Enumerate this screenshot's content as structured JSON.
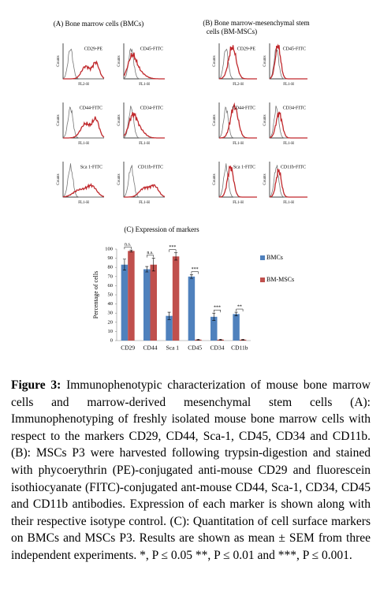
{
  "panel_a": {
    "title": "(A) Bone marrow cells (BMCs)",
    "histograms": [
      {
        "marker": "CD29-PE",
        "y_label": "Counts",
        "x_label": "FL2-H"
      },
      {
        "marker": "CD45-FITC",
        "y_label": "Counts",
        "x_label": "FL1-H"
      },
      {
        "marker": "CD44-FITC",
        "y_label": "Counts",
        "x_label": "FL1-H"
      },
      {
        "marker": "CD34-FITC",
        "y_label": "Counts",
        "x_label": "FL1-H"
      },
      {
        "marker": "Sca 1-FITC",
        "y_label": "Counts",
        "x_label": "FL1-H"
      },
      {
        "marker": "CD11b-FITC",
        "y_label": "Counts",
        "x_label": "FL1-H"
      }
    ]
  },
  "panel_b": {
    "title": [
      "(B) Bone marrow-mesenchymal stem",
      "cells (BM-MSCs)"
    ],
    "histograms": [
      {
        "marker": "CD29-PE",
        "y_label": "Counts",
        "x_label": "FL2-H"
      },
      {
        "marker": "CD45-FITC",
        "y_label": "Counts",
        "x_label": "FL1-H"
      },
      {
        "marker": "CD44-FITC",
        "y_label": "Counts",
        "x_label": "FL1-H"
      },
      {
        "marker": "CD34-FITC",
        "y_label": "Counts",
        "x_label": "FL1-H"
      },
      {
        "marker": "Sca 1-FITC",
        "y_label": "Counts",
        "x_label": "FL1-H"
      },
      {
        "marker": "CD11b-FITC",
        "y_label": "Counts",
        "x_label": "FL1-H"
      }
    ]
  },
  "chart_data": {
    "type": "bar",
    "title": "(C) Expression of markers",
    "y_label": "Percentage of cells",
    "categories": [
      "CD29",
      "CD44",
      "Sca 1",
      "CD45",
      "CD34",
      "CD11b"
    ],
    "series": [
      {
        "name": "BMCs",
        "color": "#4f81bd",
        "values": [
          83,
          78,
          27,
          70,
          26,
          29
        ],
        "errors": [
          6,
          3,
          4,
          2,
          4,
          2
        ]
      },
      {
        "name": "BM-MSCs",
        "color": "#c0504d",
        "values": [
          98,
          83,
          92,
          1,
          1,
          1
        ],
        "errors": [
          1,
          7,
          4,
          0.5,
          0.5,
          0.5
        ]
      }
    ],
    "significance": [
      "n.s.",
      "n.s.",
      "***",
      "***",
      "***",
      "**"
    ],
    "ylim": [
      0,
      100
    ],
    "yticks": [
      0,
      10,
      20,
      30,
      40,
      50,
      60,
      70,
      80,
      90,
      100
    ],
    "legend": "right"
  },
  "caption": {
    "label": "Figure 3:",
    "text": "Immunophenotypic characterization of mouse bone marrow cells and marrow-derived mesenchymal stem cells (A): Immunophenotyping of freshly isolated mouse bone marrow cells with respect to the markers CD29, CD44, Sca-1, CD45, CD34 and CD11b. (B): MSCs P3 were harvested following trypsin-digestion and stained with phycoerythrin (PE)-conjugated anti-mouse CD29 and fluorescein isothiocyanate (FITC)-conjugated ant-mouse CD44, Sca-1, CD34, CD45 and CD11b antibodies. Expression of each marker is shown along with their respective isotype control. (C): Quantitation of cell surface markers on BMCs and MSCs P3. Results are shown as mean ± SEM from three independent experiments. *, P ≤ 0.05 **, P ≤ 0.01 and ***, P ≤ 0.001."
  }
}
